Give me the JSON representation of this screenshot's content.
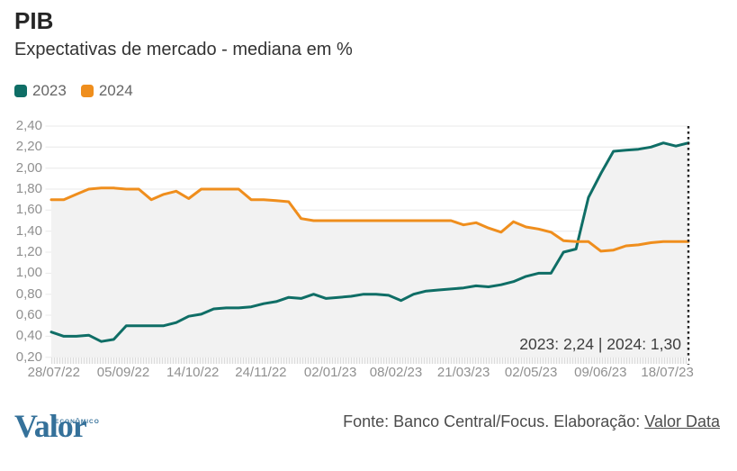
{
  "header": {
    "title": "PIB",
    "subtitle": "Expectativas de mercado - mediana em %"
  },
  "legend": {
    "items": [
      {
        "label": "2023",
        "color": "#0f6e66"
      },
      {
        "label": "2024",
        "color": "#ef8e1d"
      }
    ]
  },
  "chart_data": {
    "type": "line",
    "title": "PIB",
    "subtitle": "Expectativas de mercado - mediana em %",
    "unit": "%",
    "ylim": [
      0.2,
      2.4
    ],
    "ytick_labels": [
      "2,40",
      "2,20",
      "2,00",
      "1,80",
      "1,60",
      "1,40",
      "1,20",
      "1,00",
      "0,80",
      "0,60",
      "0,40",
      "0,20"
    ],
    "xticks": [
      {
        "label": "28/07/22",
        "f": 0.004
      },
      {
        "label": "05/09/22",
        "f": 0.113
      },
      {
        "label": "14/10/22",
        "f": 0.222
      },
      {
        "label": "24/11/22",
        "f": 0.329
      },
      {
        "label": "02/01/23",
        "f": 0.438
      },
      {
        "label": "08/02/23",
        "f": 0.541
      },
      {
        "label": "21/03/23",
        "f": 0.647
      },
      {
        "label": "02/05/23",
        "f": 0.753
      },
      {
        "label": "09/06/23",
        "f": 0.862
      },
      {
        "label": "18/07/23",
        "f": 0.967
      }
    ],
    "grid": "horizontal",
    "legend_position": "top-left",
    "area_fill": "#f2f2f2",
    "gridline_color": "#e8e8e8",
    "series": [
      {
        "name": "2023",
        "color": "#0f6e66",
        "values": [
          0.44,
          0.4,
          0.4,
          0.41,
          0.35,
          0.37,
          0.5,
          0.5,
          0.5,
          0.5,
          0.53,
          0.59,
          0.61,
          0.66,
          0.67,
          0.67,
          0.68,
          0.71,
          0.73,
          0.77,
          0.76,
          0.8,
          0.76,
          0.77,
          0.78,
          0.8,
          0.8,
          0.79,
          0.74,
          0.8,
          0.83,
          0.84,
          0.85,
          0.86,
          0.88,
          0.87,
          0.89,
          0.92,
          0.97,
          1.0,
          1.0,
          1.2,
          1.23,
          1.72,
          1.95,
          2.16,
          2.17,
          2.18,
          2.2,
          2.24,
          2.21,
          2.24
        ]
      },
      {
        "name": "2024",
        "color": "#ef8e1d",
        "values": [
          1.7,
          1.7,
          1.75,
          1.8,
          1.81,
          1.81,
          1.8,
          1.8,
          1.7,
          1.75,
          1.78,
          1.71,
          1.8,
          1.8,
          1.8,
          1.8,
          1.7,
          1.7,
          1.69,
          1.68,
          1.52,
          1.5,
          1.5,
          1.5,
          1.5,
          1.5,
          1.5,
          1.5,
          1.5,
          1.5,
          1.5,
          1.5,
          1.5,
          1.46,
          1.48,
          1.43,
          1.39,
          1.49,
          1.44,
          1.42,
          1.39,
          1.31,
          1.3,
          1.3,
          1.21,
          1.22,
          1.26,
          1.27,
          1.29,
          1.3,
          1.3,
          1.3
        ]
      }
    ],
    "end_marker": "dotted-vertical-line",
    "end_values_label": "2023: 2,24  |  2024: 1,30"
  },
  "footer": {
    "logo_text": "Valor",
    "logo_sub": "ECONÔMICO",
    "logo_color": "#35719a",
    "source_text": "Fonte: Banco Central/Focus. Elaboração: ",
    "source_link": "Valor Data"
  }
}
